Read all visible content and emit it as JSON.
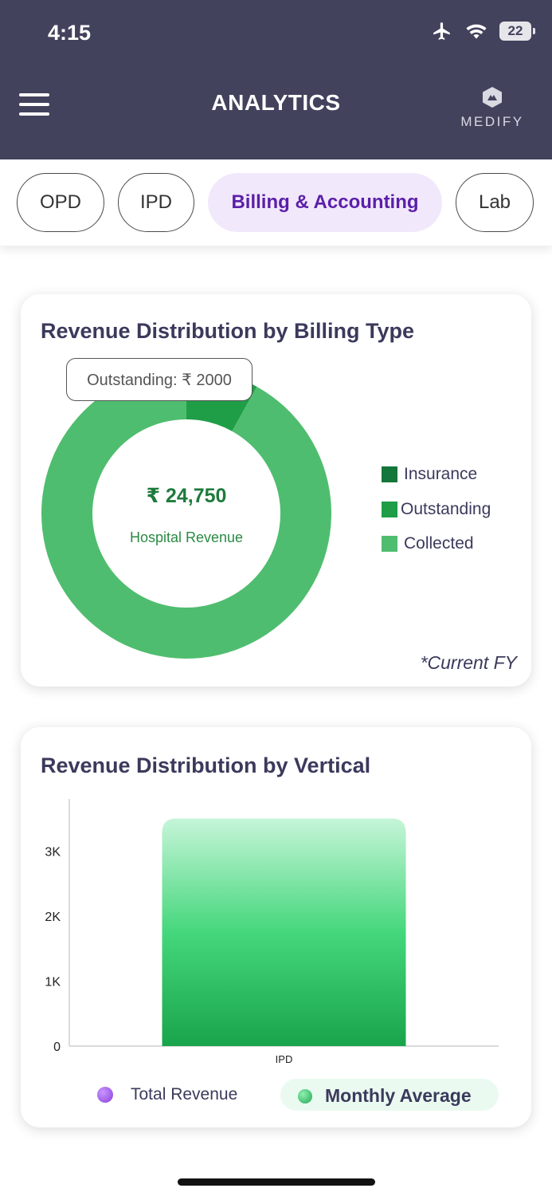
{
  "status_bar": {
    "time": "4:15",
    "battery": "22"
  },
  "header": {
    "title": "ANALYTICS",
    "logo_text": "MEDIFY"
  },
  "tabs": [
    {
      "label": "OPD",
      "active": false
    },
    {
      "label": "IPD",
      "active": false
    },
    {
      "label": "Billing & Accounting",
      "active": true
    },
    {
      "label": "Lab",
      "active": false
    }
  ],
  "donut_card": {
    "title": "Revenue Distribution by Billing Type",
    "tooltip": "Outstanding: ₹ 2000",
    "center_value": "₹ 24,750",
    "center_label": "Hospital Revenue",
    "footnote": "*Current FY",
    "chart_data": {
      "type": "pie",
      "series": [
        {
          "name": "Insurance",
          "value": 0,
          "color": "#13763a"
        },
        {
          "name": "Outstanding",
          "value": 2000,
          "color": "#1f9e47"
        },
        {
          "name": "Collected",
          "value": 22750,
          "color": "#4fbd6f"
        }
      ]
    }
  },
  "bar_card": {
    "title": "Revenue Distribution by Vertical",
    "chart_data": {
      "type": "bar",
      "categories": [
        "IPD"
      ],
      "series": [
        {
          "name": "Monthly Average",
          "values": [
            3500
          ]
        }
      ],
      "y_ticks": [
        "0",
        "1K",
        "2K",
        "3K"
      ],
      "ylim": [
        0,
        3800
      ]
    },
    "legend": [
      {
        "label": "Total Revenue",
        "color": "#8b3fd9"
      },
      {
        "label": "Monthly Average",
        "color": "#21a653"
      }
    ]
  },
  "colors": {
    "header_bg": "#43425d",
    "accent_purple": "#5b1fa8",
    "active_tab_bg": "#f1e8fb"
  }
}
